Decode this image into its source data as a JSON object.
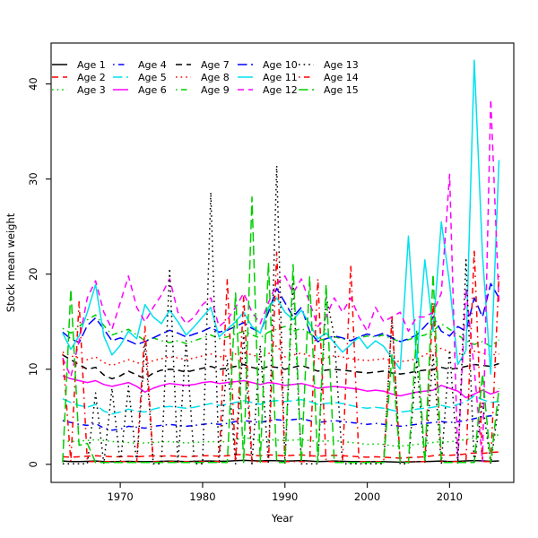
{
  "figure": {
    "xlabel": "Year",
    "ylabel": "Stock mean weight"
  },
  "chart_data": {
    "type": "line",
    "title": "",
    "xlabel": "Year",
    "ylabel": "Stock mean weight",
    "x_ticks": [
      1970,
      1980,
      1990,
      2000,
      2010
    ],
    "y_ticks": [
      0,
      10,
      20,
      30,
      40
    ],
    "xlim": [
      1961.6,
      2017.8
    ],
    "ylim": [
      -1.9,
      44.3
    ],
    "grid": false,
    "legend_position": "top-left-inside",
    "legend_columns": 5,
    "legend_rows": 3,
    "years": [
      1963,
      1964,
      1965,
      1966,
      1967,
      1968,
      1969,
      1970,
      1971,
      1972,
      1973,
      1974,
      1975,
      1976,
      1977,
      1978,
      1979,
      1980,
      1981,
      1982,
      1983,
      1984,
      1985,
      1986,
      1987,
      1988,
      1989,
      1990,
      1991,
      1992,
      1993,
      1994,
      1995,
      1996,
      1997,
      1998,
      1999,
      2000,
      2001,
      2002,
      2003,
      2004,
      2005,
      2006,
      2007,
      2008,
      2009,
      2010,
      2011,
      2012,
      2013,
      2014,
      2015,
      2016
    ],
    "series": [
      {
        "name": "Age 1",
        "color": "#000000",
        "linestyle": "solid",
        "values": [
          0.35,
          0.3,
          0.3,
          0.32,
          0.35,
          0.3,
          0.28,
          0.3,
          0.32,
          0.3,
          0.28,
          0.3,
          0.32,
          0.34,
          0.32,
          0.3,
          0.32,
          0.33,
          0.35,
          0.32,
          0.33,
          0.38,
          0.42,
          0.38,
          0.35,
          0.4,
          0.38,
          0.33,
          0.36,
          0.4,
          0.35,
          0.3,
          0.32,
          0.35,
          0.32,
          0.3,
          0.3,
          0.27,
          0.3,
          0.28,
          0.26,
          0.22,
          0.25,
          0.28,
          0.3,
          0.32,
          0.35,
          0.3,
          0.32,
          0.36,
          0.4,
          0.36,
          0.32,
          0.36
        ]
      },
      {
        "name": "Age 2",
        "color": "#ff0000",
        "linestyle": "dashed",
        "values": [
          0.8,
          0.75,
          0.8,
          0.85,
          0.9,
          0.85,
          0.8,
          0.8,
          0.85,
          0.8,
          0.85,
          0.9,
          0.85,
          0.9,
          0.85,
          0.8,
          0.85,
          0.9,
          0.9,
          0.85,
          0.9,
          1.0,
          1.05,
          0.95,
          0.9,
          1.0,
          0.95,
          0.9,
          0.95,
          1.0,
          0.9,
          0.85,
          0.9,
          0.95,
          0.9,
          0.85,
          0.8,
          0.75,
          0.8,
          0.75,
          0.7,
          0.65,
          0.7,
          0.75,
          0.8,
          0.9,
          1.0,
          0.95,
          1.0,
          1.1,
          1.2,
          1.15,
          1.25,
          1.3
        ]
      },
      {
        "name": "Age 3",
        "color": "#00cd00",
        "linestyle": "dotted",
        "values": [
          2.5,
          2.4,
          2.45,
          2.5,
          2.6,
          2.5,
          2.4,
          2.35,
          2.3,
          2.2,
          2.25,
          2.3,
          2.35,
          2.4,
          2.3,
          2.25,
          2.3,
          2.35,
          2.4,
          2.35,
          2.4,
          2.6,
          2.8,
          2.7,
          2.5,
          2.6,
          2.55,
          2.5,
          2.55,
          2.6,
          2.5,
          2.4,
          2.45,
          2.5,
          2.4,
          2.3,
          2.2,
          2.1,
          2.15,
          2.1,
          1.95,
          1.9,
          2.0,
          2.1,
          2.2,
          2.3,
          2.4,
          2.35,
          2.5,
          2.6,
          2.8,
          2.9,
          3.0,
          3.1
        ]
      },
      {
        "name": "Age 4",
        "color": "#0000ff",
        "linestyle": "dashdot",
        "values": [
          4.6,
          4.4,
          4.2,
          4.1,
          4.3,
          3.8,
          3.6,
          3.7,
          4.0,
          3.9,
          3.8,
          4.0,
          4.1,
          4.2,
          4.1,
          4.0,
          4.1,
          4.2,
          4.3,
          4.2,
          4.3,
          4.5,
          4.6,
          4.5,
          4.4,
          4.6,
          4.7,
          4.6,
          4.7,
          4.8,
          4.6,
          4.4,
          4.5,
          4.6,
          4.5,
          4.4,
          4.3,
          4.2,
          4.3,
          4.2,
          4.1,
          4.0,
          4.1,
          4.2,
          4.3,
          4.4,
          4.5,
          4.4,
          4.5,
          4.6,
          4.8,
          5.0,
          5.1,
          5.2
        ]
      },
      {
        "name": "Age 5",
        "color": "#00e1ee",
        "linestyle": "longdash",
        "values": [
          6.9,
          6.5,
          6.2,
          6.0,
          6.3,
          5.6,
          5.3,
          5.5,
          5.8,
          5.6,
          5.5,
          5.8,
          6.0,
          6.1,
          6.0,
          5.9,
          6.0,
          6.2,
          6.4,
          6.2,
          6.3,
          6.5,
          6.7,
          6.5,
          6.3,
          6.6,
          6.7,
          6.6,
          6.7,
          6.8,
          6.6,
          6.3,
          6.4,
          6.5,
          6.4,
          6.2,
          6.0,
          5.9,
          6.0,
          5.9,
          5.7,
          5.5,
          5.6,
          5.8,
          5.9,
          6.0,
          6.2,
          6.0,
          6.3,
          6.6,
          7.2,
          6.8,
          6.5,
          6.6
        ]
      },
      {
        "name": "Age 6",
        "color": "#ff00ff",
        "linestyle": "solid",
        "values": [
          9.3,
          9.0,
          8.8,
          8.6,
          8.8,
          8.4,
          8.2,
          8.4,
          8.6,
          8.2,
          7.6,
          8.0,
          8.3,
          8.5,
          8.4,
          8.3,
          8.4,
          8.6,
          8.7,
          8.5,
          8.6,
          8.7,
          8.8,
          8.6,
          8.4,
          8.6,
          8.5,
          8.3,
          8.4,
          8.5,
          8.3,
          8.0,
          8.1,
          8.2,
          8.1,
          8.0,
          7.9,
          7.7,
          7.8,
          7.7,
          7.4,
          7.2,
          7.4,
          7.6,
          7.7,
          7.8,
          8.3,
          8.0,
          7.7,
          7.0,
          7.4,
          7.8,
          7.4,
          7.7
        ]
      },
      {
        "name": "Age 7",
        "color": "#000000",
        "linestyle": "dashed",
        "values": [
          11.5,
          11.0,
          10.5,
          10.0,
          10.2,
          9.4,
          9.0,
          9.3,
          9.8,
          9.4,
          9.0,
          9.6,
          9.9,
          10.0,
          9.9,
          9.7,
          9.9,
          10.1,
          10.3,
          10.0,
          10.1,
          10.3,
          10.5,
          10.2,
          10.0,
          10.3,
          10.2,
          10.0,
          10.2,
          10.4,
          10.1,
          9.8,
          9.9,
          10.0,
          9.9,
          9.8,
          9.7,
          9.6,
          9.7,
          9.8,
          9.6,
          9.5,
          9.6,
          9.8,
          9.9,
          10.0,
          10.2,
          10.0,
          10.1,
          10.3,
          10.5,
          10.4,
          10.3,
          10.6
        ]
      },
      {
        "name": "Age 8",
        "color": "#ff0000",
        "linestyle": "dotted",
        "values": [
          11.8,
          11.4,
          11.2,
          11.0,
          11.3,
          10.7,
          10.4,
          10.7,
          11.0,
          10.7,
          10.5,
          10.9,
          11.1,
          11.3,
          11.2,
          11.0,
          11.2,
          11.4,
          11.6,
          11.3,
          11.4,
          11.6,
          11.8,
          11.5,
          11.3,
          11.6,
          12.5,
          11.3,
          11.5,
          11.7,
          11.4,
          11.1,
          11.2,
          11.4,
          11.3,
          11.1,
          11.0,
          10.9,
          11.0,
          11.1,
          10.9,
          10.8,
          10.9,
          11.1,
          11.5,
          12.0,
          12.2,
          11.8,
          11.6,
          11.7,
          11.9,
          11.7,
          11.5,
          11.6
        ]
      },
      {
        "name": "Age 9",
        "color": "#00cd00",
        "linestyle": "dashdot",
        "values": [
          14.3,
          13.8,
          14.5,
          15.2,
          15.7,
          14.6,
          13.6,
          13.9,
          14.2,
          13.6,
          13.0,
          13.3,
          13.0,
          12.8,
          13.0,
          12.7,
          13.0,
          13.3,
          13.6,
          13.2,
          13.4,
          13.7,
          14.0,
          13.6,
          13.3,
          13.9,
          14.2,
          14.5,
          14.0,
          14.3,
          13.8,
          13.0,
          13.2,
          13.4,
          13.2,
          13.0,
          13.3,
          13.5,
          13.4,
          13.6,
          13.2,
          12.9,
          13.1,
          13.4,
          13.6,
          14.0,
          14.8,
          14.2,
          13.6,
          13.0,
          12.6,
          12.9,
          12.4,
          13.1
        ]
      },
      {
        "name": "Age 10",
        "color": "#0000ff",
        "linestyle": "longdash",
        "values": [
          13.9,
          13.2,
          12.8,
          14.6,
          15.4,
          14.2,
          13.0,
          13.3,
          13.0,
          12.6,
          12.9,
          13.3,
          13.7,
          14.1,
          13.8,
          13.4,
          13.7,
          14.0,
          14.4,
          13.9,
          14.1,
          14.5,
          14.9,
          14.3,
          13.9,
          16.0,
          18.5,
          17.0,
          15.5,
          16.5,
          14.0,
          12.9,
          13.2,
          13.5,
          13.3,
          13.0,
          13.4,
          13.7,
          13.5,
          13.8,
          13.3,
          12.9,
          13.2,
          13.6,
          14.5,
          15.5,
          14.0,
          13.5,
          14.5,
          14.0,
          17.5,
          15.5,
          19.0,
          17.5
        ]
      },
      {
        "name": "Age 11",
        "color": "#00e1ee",
        "linestyle": "solid",
        "values": [
          13.8,
          12.1,
          13.5,
          16.0,
          18.9,
          13.5,
          11.5,
          12.5,
          14.0,
          13.2,
          16.8,
          15.5,
          14.8,
          16.2,
          15.0,
          13.6,
          14.5,
          15.5,
          16.5,
          13.4,
          14.2,
          15.0,
          16.0,
          14.5,
          13.8,
          16.5,
          17.5,
          16.0,
          15.2,
          16.2,
          14.8,
          13.2,
          13.8,
          12.8,
          11.8,
          12.6,
          13.4,
          12.2,
          13.0,
          12.4,
          11.2,
          10.0,
          24.0,
          10.8,
          21.5,
          14.0,
          25.5,
          19.0,
          10.5,
          12.0,
          42.5,
          22.0,
          9.5,
          32.0
        ]
      },
      {
        "name": "Age 12",
        "color": "#ff00ff",
        "linestyle": "dashed",
        "values": [
          11.2,
          9.2,
          13.0,
          17.5,
          19.3,
          16.0,
          14.2,
          17.0,
          19.8,
          16.5,
          15.0,
          16.5,
          17.8,
          19.5,
          16.0,
          14.8,
          15.5,
          16.8,
          17.5,
          14.5,
          15.2,
          16.5,
          18.0,
          16.0,
          14.8,
          17.0,
          19.0,
          19.8,
          18.0,
          19.5,
          17.0,
          14.5,
          15.5,
          17.5,
          16.0,
          17.5,
          15.5,
          14.0,
          16.5,
          15.0,
          15.5,
          16.0,
          14.0,
          15.5,
          15.5,
          16.0,
          18.0,
          30.5,
          0.5,
          18.5,
          10.0,
          0.3,
          38.4,
          17.0
        ]
      },
      {
        "name": "Age 13",
        "color": "#000000",
        "linestyle": "dotted",
        "values": [
          0.05,
          0.05,
          0.05,
          0.05,
          7.5,
          0.05,
          8.0,
          0.05,
          8.2,
          0.05,
          12.8,
          0.05,
          0.05,
          20.6,
          0.05,
          13.0,
          0.05,
          0.05,
          28.6,
          0.05,
          11.0,
          0.05,
          13.8,
          0.05,
          12.5,
          0.05,
          31.4,
          0.05,
          19.5,
          0.05,
          0.05,
          0.05,
          17.7,
          13.5,
          0.05,
          0.05,
          0.05,
          0.05,
          0.05,
          0.05,
          15.5,
          0.05,
          0.05,
          11.0,
          0.05,
          11.5,
          0.05,
          12.0,
          0.05,
          21.5,
          0.05,
          6.5,
          0.05,
          6.5
        ]
      },
      {
        "name": "Age 14",
        "color": "#ff0000",
        "linestyle": "dashdot",
        "values": [
          11.6,
          0.3,
          17.1,
          0.3,
          0.3,
          0.3,
          0.3,
          0.3,
          0.3,
          0.3,
          14.5,
          0.3,
          0.3,
          0.3,
          0.3,
          0.3,
          0.3,
          0.3,
          0.3,
          0.3,
          19.5,
          0.3,
          17.7,
          0.3,
          0.3,
          0.3,
          22.3,
          0.3,
          0.3,
          0.3,
          0.3,
          19.5,
          0.3,
          0.3,
          0.3,
          21.0,
          0.3,
          0.3,
          0.3,
          0.3,
          15.5,
          0.3,
          0.3,
          0.3,
          0.3,
          17.0,
          0.3,
          0.3,
          0.3,
          0.3,
          22.6,
          0.3,
          0.3,
          19.8
        ]
      },
      {
        "name": "Age 15",
        "color": "#00cd00",
        "linestyle": "longdash",
        "values": [
          0.2,
          18.4,
          2.0,
          2.2,
          0.2,
          0.2,
          0.2,
          0.2,
          0.2,
          0.2,
          0.2,
          0.2,
          0.2,
          0.2,
          0.2,
          0.2,
          0.2,
          0.2,
          0.2,
          0.2,
          0.2,
          18.0,
          0.2,
          28.1,
          0.2,
          21.2,
          0.2,
          0.2,
          21.0,
          0.2,
          19.7,
          0.2,
          18.9,
          0.2,
          0.2,
          0.2,
          0.2,
          0.2,
          0.2,
          0.2,
          11.5,
          0.2,
          0.2,
          14.0,
          0.2,
          20.0,
          0.2,
          0.2,
          0.2,
          0.2,
          0.2,
          9.5,
          0.2,
          8.0
        ]
      }
    ]
  }
}
